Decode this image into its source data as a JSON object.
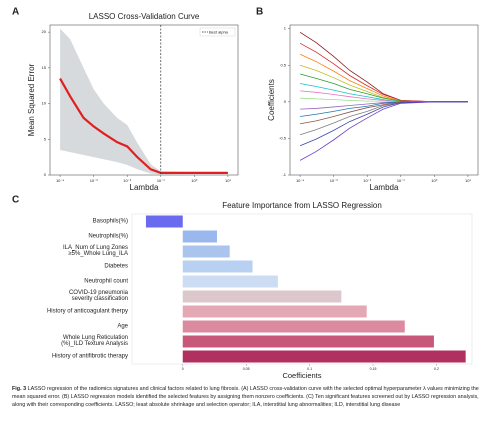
{
  "chart_data": [
    {
      "type": "line",
      "panel_label": "A",
      "title": "LASSO Cross-Validation Curve",
      "x_label": "Lambda",
      "y_label": "Mean Squared Error",
      "xscale": "log",
      "xlim": [
        5e-05,
        20
      ],
      "ylim": [
        0,
        21
      ],
      "xticks": [
        {
          "value": 0.0001,
          "label": "10⁻⁴"
        },
        {
          "value": 0.001,
          "label": "10⁻³"
        },
        {
          "value": 0.01,
          "label": "10⁻²"
        },
        {
          "value": 0.1,
          "label": "10⁻¹"
        },
        {
          "value": 1,
          "label": "10⁰"
        },
        {
          "value": 10,
          "label": "10¹"
        }
      ],
      "yticks": [
        0,
        5,
        10,
        15,
        20
      ],
      "x": [
        0.0001,
        0.0002,
        0.0005,
        0.001,
        0.002,
        0.005,
        0.01,
        0.02,
        0.05,
        0.1,
        1,
        10
      ],
      "series": [
        {
          "color": "#e02020",
          "values": [
            13.5,
            11,
            8,
            6.8,
            5.8,
            4.6,
            4.0,
            2.5,
            0.8,
            0.3,
            0.3,
            0.3
          ]
        }
      ],
      "band": {
        "color": "#cfd3d6",
        "upper": [
          20.5,
          19,
          15,
          12,
          10,
          8,
          7,
          4.5,
          1.5,
          0.5,
          0.4,
          0.4
        ],
        "lower": [
          3.5,
          3.2,
          2.8,
          2.5,
          2.2,
          1.8,
          1.4,
          0.8,
          0.2,
          0.1,
          0.2,
          0.2
        ]
      },
      "vline": {
        "value": 0.1,
        "name": "Best alpha"
      }
    },
    {
      "type": "line",
      "panel_label": "B",
      "x_label": "Lambda",
      "y_label": "Coefficients",
      "xscale": "log",
      "xlim": [
        5e-05,
        20
      ],
      "ylim": [
        -1,
        1.05
      ],
      "xticks": [
        {
          "value": 0.0001,
          "label": "10⁻⁴"
        },
        {
          "value": 0.001,
          "label": "10⁻³"
        },
        {
          "value": 0.01,
          "label": "10⁻²"
        },
        {
          "value": 0.1,
          "label": "10⁻¹"
        },
        {
          "value": 1,
          "label": "10⁰"
        },
        {
          "value": 10,
          "label": "10¹"
        }
      ],
      "yticks": [
        -1,
        -0.5,
        0,
        0.5,
        1
      ],
      "x": [
        0.0001,
        0.0003,
        0.001,
        0.003,
        0.01,
        0.03,
        0.1,
        1,
        10
      ],
      "series": [
        {
          "color": "#8b1a1a",
          "values": [
            0.95,
            0.81,
            0.62,
            0.43,
            0.27,
            0.11,
            0.02,
            0,
            0
          ]
        },
        {
          "color": "#d62728",
          "values": [
            0.8,
            0.68,
            0.52,
            0.36,
            0.22,
            0.1,
            0.02,
            0,
            0
          ]
        },
        {
          "color": "#ff7f0e",
          "values": [
            0.65,
            0.55,
            0.42,
            0.29,
            0.18,
            0.08,
            0.01,
            0,
            0
          ]
        },
        {
          "color": "#bcbd22",
          "values": [
            0.5,
            0.43,
            0.33,
            0.23,
            0.14,
            0.06,
            0.01,
            0,
            0
          ]
        },
        {
          "color": "#2ca02c",
          "values": [
            0.38,
            0.32,
            0.25,
            0.17,
            0.11,
            0.05,
            0.01,
            0,
            0
          ]
        },
        {
          "color": "#17becf",
          "values": [
            0.25,
            0.21,
            0.16,
            0.11,
            0.07,
            0.03,
            0,
            0,
            0
          ]
        },
        {
          "color": "#e377c2",
          "values": [
            0.15,
            0.13,
            0.1,
            0.07,
            0.04,
            0.02,
            0,
            0,
            0
          ]
        },
        {
          "color": "#98df8a",
          "values": [
            0.05,
            0.04,
            0.03,
            0.02,
            0.01,
            0.01,
            0,
            0,
            0
          ]
        },
        {
          "color": "#9467bd",
          "values": [
            -0.1,
            -0.09,
            -0.07,
            -0.05,
            -0.03,
            -0.01,
            0,
            0,
            0
          ]
        },
        {
          "color": "#1f77b4",
          "values": [
            -0.2,
            -0.17,
            -0.13,
            -0.09,
            -0.06,
            -0.02,
            0,
            0,
            0
          ]
        },
        {
          "color": "#8c564b",
          "values": [
            -0.3,
            -0.26,
            -0.2,
            -0.14,
            -0.08,
            -0.04,
            0,
            0,
            0
          ]
        },
        {
          "color": "#7f7f7f",
          "values": [
            -0.45,
            -0.38,
            -0.29,
            -0.2,
            -0.13,
            -0.05,
            -0.01,
            0,
            0
          ]
        },
        {
          "color": "#3949ab",
          "values": [
            -0.6,
            -0.51,
            -0.39,
            -0.27,
            -0.17,
            -0.07,
            -0.01,
            0,
            0
          ]
        },
        {
          "color": "#6a3dcf",
          "values": [
            -0.8,
            -0.68,
            -0.52,
            -0.36,
            -0.22,
            -0.1,
            -0.02,
            0,
            0
          ]
        }
      ]
    },
    {
      "type": "bar",
      "orientation": "horizontal",
      "panel_label": "C",
      "title": "Feature Importance from LASSO Regression",
      "x_label": "Coefficients",
      "xlim": [
        -0.04,
        0.228
      ],
      "xticks": [
        0,
        0.05,
        0.1,
        0.15,
        0.2
      ],
      "categories": [
        "Basophils(%)",
        "Neutrophils(%)",
        "ILA_Num of Lung Zones\n≥5%_Whole Lung_ILA",
        "Diabetes",
        "Neutrophil count",
        "COVID-19 pneumonia\nseverity classification",
        "History of anticoagulant therpy",
        "Age",
        "Whole Lung Reticulation\n(%)_ILD Texture Analysis",
        "History of antifibrotic therapy"
      ],
      "values": [
        -0.029,
        0.027,
        0.037,
        0.055,
        0.075,
        0.125,
        0.145,
        0.175,
        0.198,
        0.223
      ],
      "colors": [
        "#6a6af0",
        "#9bb8ee",
        "#aac4ee",
        "#b8d0f2",
        "#ccdcf2",
        "#dcc8cc",
        "#e4a8b4",
        "#dc8aa0",
        "#c8587a",
        "#b03060"
      ]
    }
  ],
  "caption": {
    "label": "Fig. 3",
    "text": "LASSO regression of the radiomics signatures and clinical factors related to lung fibrosis. (A) LASSO cross-validation curve with the selected optimal hyperparameter λ values minimizing the mean squared error. (B) LASSO regression models identified the selected features by assigning them nonzero coefficients. (C) Ten significant features screened out by LASSO regression analysis, along with their corresponding coefficients. LASSO; least absolute shrinkage and selection operator; ILA, interstitial lung abnormalities; ILD, interstitial lung disease"
  }
}
